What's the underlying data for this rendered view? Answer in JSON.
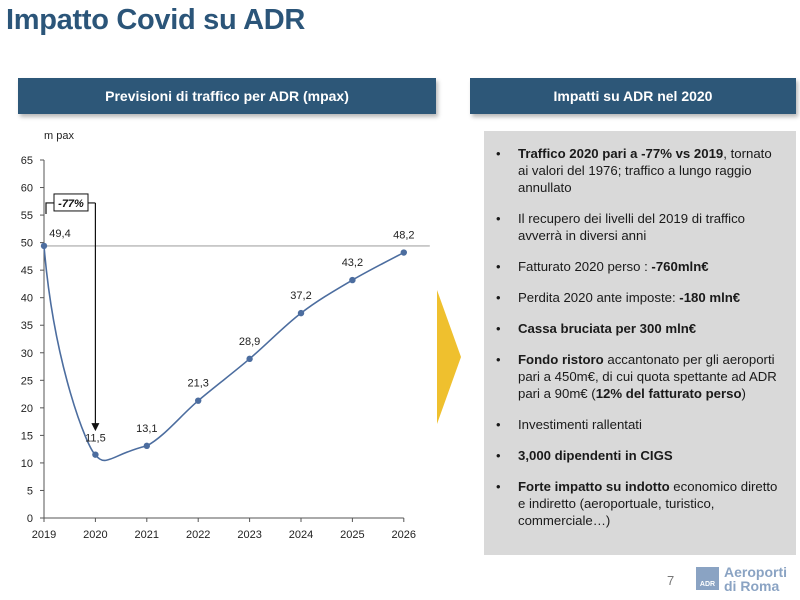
{
  "page": {
    "title": "Impatto Covid su ADR",
    "page_number": "7"
  },
  "left_panel": {
    "header": "Previsioni di traffico per ADR (mpax)"
  },
  "right_panel": {
    "header": "Impatti su ADR nel 2020"
  },
  "chart_data": {
    "type": "line",
    "ylabel": "m pax",
    "x": [
      "2019",
      "2020",
      "2021",
      "2022",
      "2023",
      "2024",
      "2025",
      "2026"
    ],
    "values": [
      49.4,
      11.5,
      13.1,
      21.3,
      28.9,
      37.2,
      43.2,
      48.2
    ],
    "labels": [
      "49,4",
      "11,5",
      "13,1",
      "21,3",
      "28,9",
      "37,2",
      "43,2",
      "48,2"
    ],
    "ylim": [
      0,
      65
    ],
    "yticks": [
      "0",
      "5",
      "10",
      "15",
      "20",
      "25",
      "30",
      "35",
      "40",
      "45",
      "50",
      "55",
      "60",
      "65"
    ],
    "reference_line": 49.4,
    "annotation": "-77%",
    "series_color": "#4c6d9f"
  },
  "impacts": [
    {
      "parts": [
        {
          "t": "Traffico 2020 pari a -77% vs 2019",
          "b": true
        },
        {
          "t": ", tornato ai valori del 1976; traffico a lungo raggio annullato",
          "b": false
        }
      ]
    },
    {
      "parts": [
        {
          "t": "Il recupero dei livelli del 2019 di traffico avverrà in diversi anni",
          "b": false
        }
      ]
    },
    {
      "parts": [
        {
          "t": "Fatturato 2020 perso : ",
          "b": false
        },
        {
          "t": "-760mln€",
          "b": true
        }
      ]
    },
    {
      "parts": [
        {
          "t": "Perdita 2020 ante imposte: ",
          "b": false
        },
        {
          "t": "-180 mln€",
          "b": true
        }
      ]
    },
    {
      "parts": [
        {
          "t": "Cassa bruciata per 300 mln€",
          "b": true
        }
      ]
    },
    {
      "parts": [
        {
          "t": "Fondo ristoro",
          "b": true
        },
        {
          "t": " accantonato per gli aeroporti pari a 450m€, di cui quota spettante ad ADR pari a 90m€ (",
          "b": false
        },
        {
          "t": "12% del fatturato perso",
          "b": true
        },
        {
          "t": ")",
          "b": false
        }
      ]
    },
    {
      "parts": [
        {
          "t": "Investimenti rallentati",
          "b": false
        }
      ]
    },
    {
      "parts": [
        {
          "t": "3,000 dipendenti in CIGS",
          "b": true
        }
      ]
    },
    {
      "parts": [
        {
          "t": "Forte impatto su indotto",
          "b": true
        },
        {
          "t": " economico diretto e indiretto (aeroportuale, turistico, commerciale…)",
          "b": false
        }
      ]
    }
  ],
  "logo": {
    "badge": "ADR",
    "line1": "Aeroporti",
    "line2": "di Roma"
  },
  "colors": {
    "header_bg": "#2d5778",
    "title": "#2b5579",
    "panel_bg": "#d9d9d9",
    "arrow": "#efc02e",
    "logo": "#8aa3c3"
  }
}
